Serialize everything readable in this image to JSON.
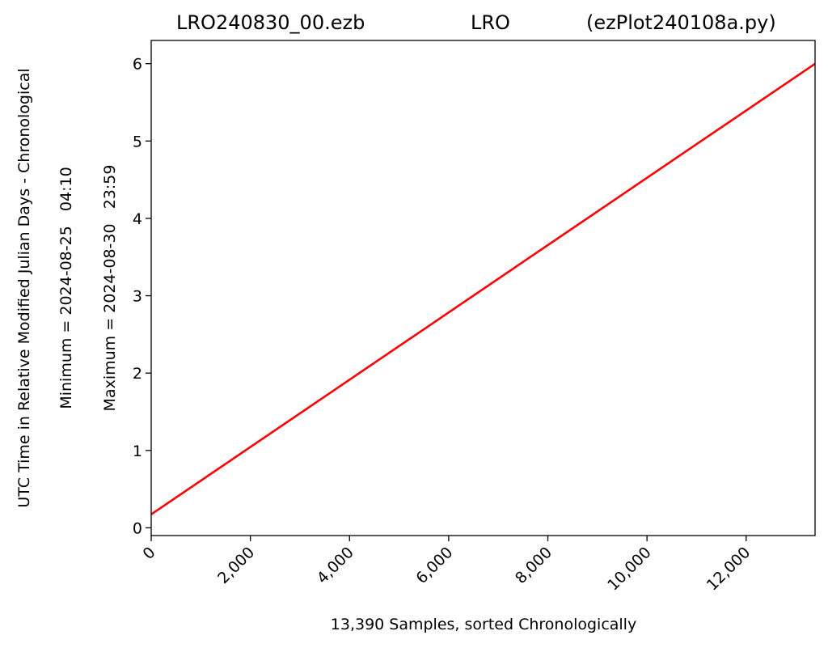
{
  "chart_data": {
    "type": "line",
    "title_left": "LRO240830_00.ezb",
    "title_center": "LRO",
    "title_right": "(ezPlot240108a.py)",
    "xlabel": "13,390 Samples, sorted Chronologically",
    "ylabel_lines": [
      "UTC Time in Relative Modified Julian Days - Chronological",
      "Minimum = 2024-08-25   04:10",
      "Maximum = 2024-08-30   23:59"
    ],
    "xlim": [
      0,
      13390
    ],
    "ylim": [
      -0.1,
      6.3
    ],
    "x_ticks": [
      0,
      2000,
      4000,
      6000,
      8000,
      10000,
      12000
    ],
    "x_tick_labels": [
      "0",
      "2,000",
      "4,000",
      "6,000",
      "8,000",
      "10,000",
      "12,000"
    ],
    "y_ticks": [
      0,
      1,
      2,
      3,
      4,
      5,
      6
    ],
    "y_tick_labels": [
      "0",
      "1",
      "2",
      "3",
      "4",
      "5",
      "6"
    ],
    "grid": false,
    "series": [
      {
        "color": "#ff0000",
        "x": [
          0,
          13390
        ],
        "y": [
          0.174,
          5.999
        ]
      }
    ]
  }
}
